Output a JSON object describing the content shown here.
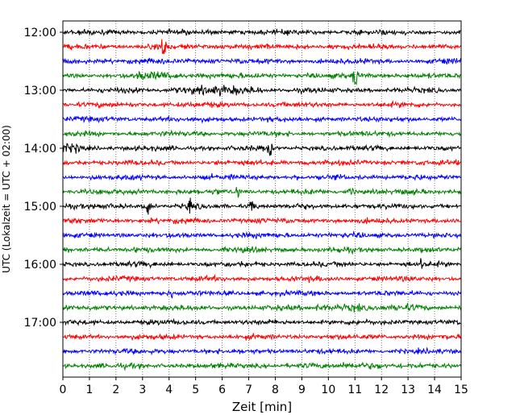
{
  "chart_data": {
    "type": "line",
    "title": "",
    "xlabel": "Zeit  [min]",
    "ylabel": "UTC (Lokalzeit = UTC + 02:00)",
    "xlim": [
      0,
      15
    ],
    "x_ticks": [
      "0",
      "1",
      "2",
      "3",
      "4",
      "5",
      "6",
      "7",
      "8",
      "9",
      "10",
      "11",
      "12",
      "13",
      "14",
      "15"
    ],
    "x_tick_values": [
      0,
      1,
      2,
      3,
      4,
      5,
      6,
      7,
      8,
      9,
      10,
      11,
      12,
      13,
      14,
      15
    ],
    "y_tick_labels": [
      "12:00",
      "13:00",
      "14:00",
      "15:00",
      "16:00",
      "17:00"
    ],
    "y_tick_rows": [
      0,
      4,
      8,
      12,
      16,
      20
    ],
    "grid": "vertical dotted at each minute",
    "row_interval_minutes": 15,
    "row_start_times": [
      "12:00",
      "12:15",
      "12:30",
      "12:45",
      "13:00",
      "13:15",
      "13:30",
      "13:45",
      "14:00",
      "14:15",
      "14:30",
      "14:45",
      "15:00",
      "15:15",
      "15:30",
      "15:45",
      "16:00",
      "16:15",
      "16:30",
      "16:45",
      "17:00",
      "17:15",
      "17:30",
      "17:45"
    ],
    "row_colors": [
      "#000000",
      "#ff0000",
      "#0000ff",
      "#008000"
    ],
    "events": [
      {
        "row": 0,
        "minute": 1.0,
        "amplitude": 0.5
      },
      {
        "row": 1,
        "minute": 3.8,
        "amplitude": 1.8
      },
      {
        "row": 3,
        "minute": 11.0,
        "amplitude": 1.9
      },
      {
        "row": 8,
        "minute": 7.8,
        "amplitude": 1.3
      },
      {
        "row": 11,
        "minute": 6.6,
        "amplitude": 0.8
      },
      {
        "row": 11,
        "minute": 10.9,
        "amplitude": 0.9
      },
      {
        "row": 12,
        "minute": 3.2,
        "amplitude": 1.3
      },
      {
        "row": 12,
        "minute": 4.8,
        "amplitude": 1.2
      },
      {
        "row": 12,
        "minute": 7.1,
        "amplitude": 0.8
      },
      {
        "row": 16,
        "minute": 13.5,
        "amplitude": 0.6
      },
      {
        "row": 17,
        "minute": 8.5,
        "amplitude": 0.6
      },
      {
        "row": 18,
        "minute": 4.1,
        "amplitude": 0.5
      }
    ],
    "noise_bursts": [
      {
        "row": 3,
        "from": 2.8,
        "to": 4.5
      },
      {
        "row": 4,
        "from": 4.0,
        "to": 7.5
      },
      {
        "row": 8,
        "from": 0.0,
        "to": 0.8
      },
      {
        "row": 19,
        "from": 9.5,
        "to": 11.2
      },
      {
        "row": 19,
        "from": 12.5,
        "to": 13.7
      },
      {
        "row": 23,
        "from": 10.5,
        "to": 12.0
      }
    ]
  }
}
